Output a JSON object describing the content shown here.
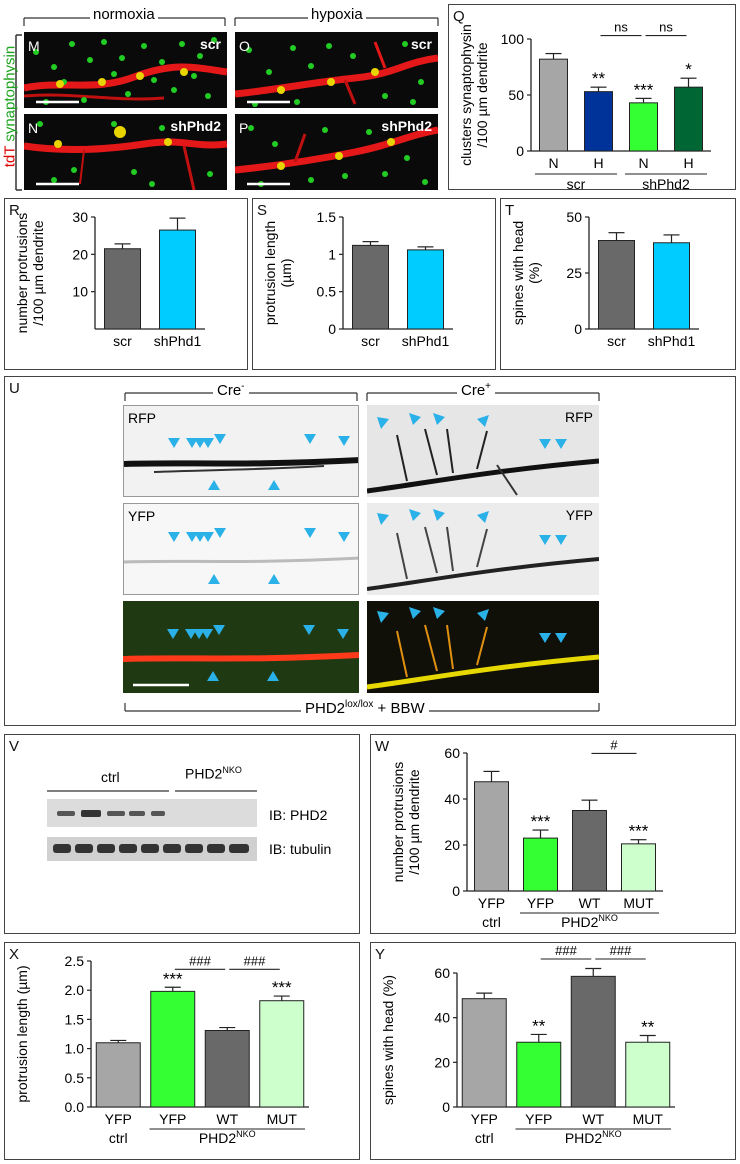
{
  "top_left": {
    "vertical_label_red": "tdT",
    "vertical_label_green": "synaptophysin",
    "normoxia": "normoxia",
    "hypoxia": "hypoxia",
    "images": [
      {
        "letter": "M",
        "tag": "scr"
      },
      {
        "letter": "O",
        "tag": "scr"
      },
      {
        "letter": "N",
        "tag": "shPhd2"
      },
      {
        "letter": "P",
        "tag": "shPhd2"
      }
    ]
  },
  "panel_u": {
    "letter": "U",
    "cre_minus": "Cre",
    "cre_minus_sup": "-",
    "cre_plus": "Cre",
    "cre_plus_sup": "+",
    "rfp": "RFP",
    "yfp": "YFP",
    "footer_main": "PHD2",
    "footer_sup": "lox/lox",
    "footer_rest": " + BBW"
  },
  "panel_v": {
    "letter": "V",
    "ctrl": "ctrl",
    "nko": "PHD2",
    "nko_sup": "NKO",
    "ib_phd2": "IB: PHD2",
    "ib_tubulin": "IB: tubulin"
  },
  "colors": {
    "gray_light": "#a6a6a6",
    "gray_dark": "#696969",
    "navy": "#003399",
    "green": "#33ff33",
    "dark_green": "#006633",
    "cyan": "#00ccff",
    "pale_green": "#ccffcc",
    "arrow_blue": "#2ab2e8"
  },
  "chart_data": [
    {
      "id": "Q",
      "type": "bar",
      "ylabel_lines": [
        "clusters synaptophysin",
        "/100 µm dendrite"
      ],
      "ylim": [
        0,
        100
      ],
      "yticks": [
        "0",
        "50",
        "100"
      ],
      "categories": [
        "N",
        "H",
        "N",
        "H"
      ],
      "groups": [
        {
          "label": "scr",
          "span": [
            0,
            1
          ]
        },
        {
          "label": "shPhd2",
          "span": [
            2,
            3
          ]
        }
      ],
      "values": [
        82,
        53,
        43,
        57
      ],
      "errors": [
        5,
        4,
        4,
        8
      ],
      "colors": [
        "#a6a6a6",
        "#003399",
        "#33ff33",
        "#006633"
      ],
      "stars": [
        "",
        "**",
        "***",
        "*"
      ],
      "comparisons": [
        {
          "from": 1,
          "to": 2,
          "label": "ns"
        },
        {
          "from": 2,
          "to": 3,
          "label": "ns"
        }
      ]
    },
    {
      "id": "R",
      "type": "bar",
      "ylabel_lines": [
        "number protrusions",
        "/100 µm dendrite"
      ],
      "ylim": [
        0,
        30
      ],
      "yticks": [
        "10",
        "20",
        "30"
      ],
      "categories": [
        "scr",
        "shPhd1"
      ],
      "values": [
        21.5,
        26.5
      ],
      "errors": [
        1.3,
        3.2
      ],
      "colors": [
        "#696969",
        "#00ccff"
      ]
    },
    {
      "id": "S",
      "type": "bar",
      "ylabel_lines": [
        "protrusion length",
        "(µm)"
      ],
      "ylim": [
        0,
        1.5
      ],
      "yticks": [
        "0",
        "0.5",
        "1",
        "1.5"
      ],
      "categories": [
        "scr",
        "shPhd1"
      ],
      "values": [
        1.12,
        1.06
      ],
      "errors": [
        0.05,
        0.04
      ],
      "colors": [
        "#696969",
        "#00ccff"
      ]
    },
    {
      "id": "T",
      "type": "bar",
      "ylabel_lines": [
        "spines with head",
        "(%)"
      ],
      "ylim": [
        0,
        50
      ],
      "yticks": [
        "0",
        "25",
        "50"
      ],
      "categories": [
        "scr",
        "shPhd1"
      ],
      "values": [
        39.5,
        38.5
      ],
      "errors": [
        3.5,
        3.5
      ],
      "colors": [
        "#696969",
        "#00ccff"
      ]
    },
    {
      "id": "W",
      "type": "bar",
      "ylabel_lines": [
        "number protrusions",
        "/100 µm dendrite"
      ],
      "ylim": [
        0,
        60
      ],
      "yticks": [
        "0",
        "20",
        "40",
        "60"
      ],
      "categories": [
        "YFP",
        "YFP",
        "WT",
        "MUT"
      ],
      "group_label_left": "ctrl",
      "group_label_right": "PHD2",
      "group_label_right_sup": "NKO",
      "values": [
        47.5,
        23,
        35,
        20.5
      ],
      "errors": [
        4.5,
        3.5,
        4.5,
        1.8
      ],
      "colors": [
        "#a6a6a6",
        "#33ff33",
        "#696969",
        "#ccffcc"
      ],
      "stars": [
        "",
        "***",
        "",
        "***"
      ],
      "comparisons": [
        {
          "from": 2,
          "to": 3,
          "label": "#"
        }
      ]
    },
    {
      "id": "X",
      "type": "bar",
      "ylabel_lines": [
        "protrusion length (µm)"
      ],
      "ylim": [
        0,
        2.5
      ],
      "yticks": [
        "0.0",
        "0.5",
        "1.0",
        "1.5",
        "2.0",
        "2.5"
      ],
      "categories": [
        "YFP",
        "YFP",
        "WT",
        "MUT"
      ],
      "group_label_left": "ctrl",
      "group_label_right": "PHD2",
      "group_label_right_sup": "NKO",
      "values": [
        1.1,
        1.98,
        1.31,
        1.82
      ],
      "errors": [
        0.04,
        0.07,
        0.05,
        0.08
      ],
      "colors": [
        "#a6a6a6",
        "#33ff33",
        "#696969",
        "#ccffcc"
      ],
      "stars": [
        "",
        "***",
        "",
        "***"
      ],
      "comparisons": [
        {
          "from": 1,
          "to": 2,
          "label": "###"
        },
        {
          "from": 2,
          "to": 3,
          "label": "###"
        }
      ]
    },
    {
      "id": "Y",
      "type": "bar",
      "ylabel_lines": [
        "spines with head (%)"
      ],
      "ylim": [
        0,
        60
      ],
      "yticks": [
        "0",
        "20",
        "40",
        "60"
      ],
      "categories": [
        "YFP",
        "YFP",
        "WT",
        "MUT"
      ],
      "group_label_left": "ctrl",
      "group_label_right": "PHD2",
      "group_label_right_sup": "NKO",
      "values": [
        48.5,
        29,
        58.5,
        29
      ],
      "errors": [
        2.5,
        3.5,
        3.5,
        3
      ],
      "colors": [
        "#a6a6a6",
        "#33ff33",
        "#696969",
        "#ccffcc"
      ],
      "stars": [
        "",
        "**",
        "",
        "**"
      ],
      "comparisons": [
        {
          "from": 1,
          "to": 2,
          "label": "###"
        },
        {
          "from": 2,
          "to": 3,
          "label": "###"
        }
      ]
    }
  ]
}
